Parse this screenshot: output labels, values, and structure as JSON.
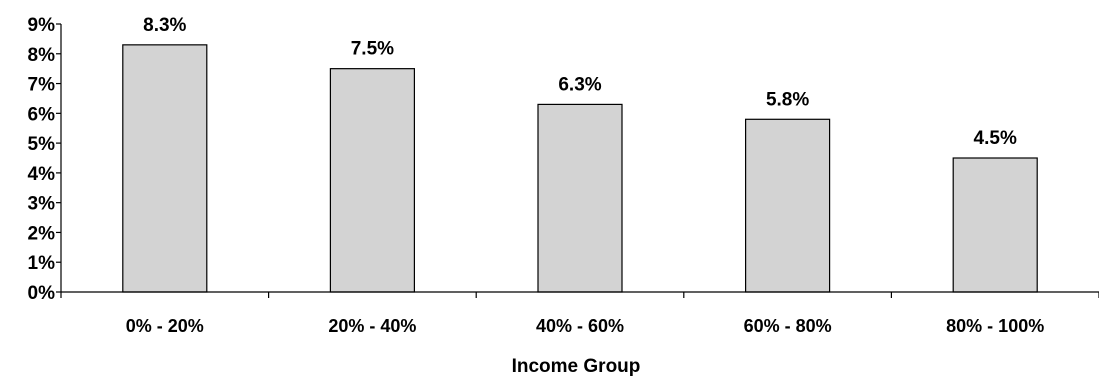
{
  "chart_data": {
    "type": "bar",
    "categories": [
      "0% - 20%",
      "20% - 40%",
      "40% - 60%",
      "60% - 80%",
      "80% - 100%"
    ],
    "values": [
      8.3,
      7.5,
      6.3,
      5.8,
      4.5
    ],
    "data_labels": [
      "8.3%",
      "7.5%",
      "6.3%",
      "5.8%",
      "4.5%"
    ],
    "title": "",
    "xlabel": "Income Group",
    "ylabel": "",
    "ylim": [
      0,
      9
    ],
    "yticks": [
      0,
      1,
      2,
      3,
      4,
      5,
      6,
      7,
      8,
      9
    ],
    "ytick_labels": [
      "0%",
      "1%",
      "2%",
      "3%",
      "4%",
      "5%",
      "6%",
      "7%",
      "8%",
      "9%"
    ],
    "grid": false,
    "legend": "none",
    "colors": {
      "bar_fill": "#d3d3d3",
      "bar_stroke": "#000000",
      "axis": "#000000",
      "text": "#000000"
    }
  }
}
